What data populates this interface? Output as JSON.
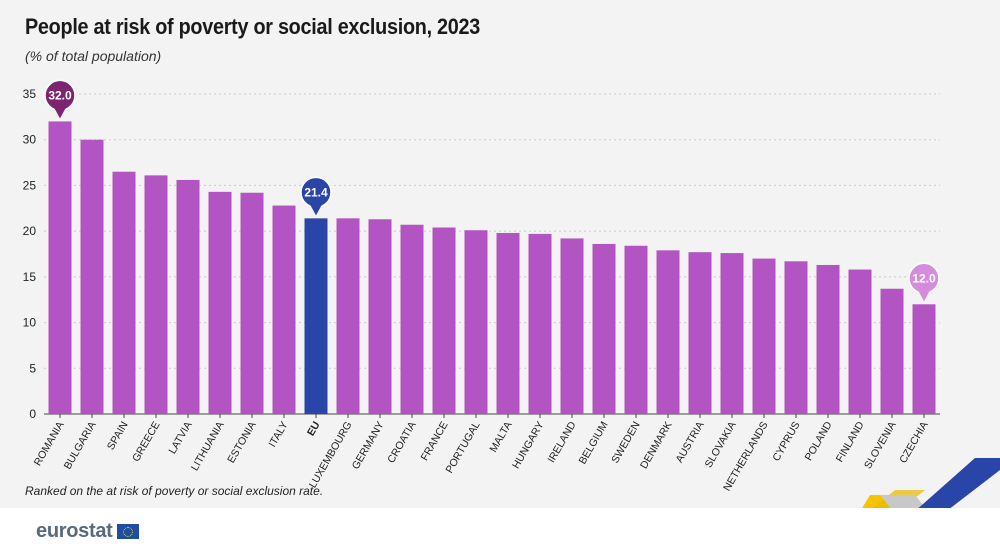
{
  "title": "People at risk of poverty or social exclusion, 2023",
  "subtitle": "(% of total population)",
  "footnote": "Ranked on the at risk of poverty or social exclusion rate.",
  "logo": {
    "text": "eurostat"
  },
  "colors": {
    "bar": "#b255c2",
    "eu": "#2a45a8",
    "max_bubble": "#7b2472",
    "min_bubble": "#d48ddd",
    "gridline": "#cccccc",
    "background": "#f3f3f3"
  },
  "chart_data": {
    "type": "bar",
    "title": "People at risk of poverty or social exclusion, 2023",
    "ylabel": "(% of total population)",
    "ylim": [
      0,
      35
    ],
    "yticks": [
      0,
      5,
      10,
      15,
      20,
      25,
      30,
      35
    ],
    "grid": true,
    "categories": [
      "ROMANIA",
      "BULGARIA",
      "SPAIN",
      "GREECE",
      "LATVIA",
      "LITHUANIA",
      "ESTONIA",
      "ITALY",
      "EU",
      "LUXEMBOURG",
      "GERMANY",
      "CROATIA",
      "FRANCE",
      "PORTUGAL",
      "MALTA",
      "HUNGARY",
      "IRELAND",
      "BELGIUM",
      "SWEDEN",
      "DENMARK",
      "AUSTRIA",
      "SLOVAKIA",
      "NETHERLANDS",
      "CYPRUS",
      "POLAND",
      "FINLAND",
      "SLOVENIA",
      "CZECHIA"
    ],
    "values": [
      32.0,
      30.0,
      26.5,
      26.1,
      25.6,
      24.3,
      24.2,
      22.8,
      21.4,
      21.4,
      21.3,
      20.7,
      20.4,
      20.1,
      19.8,
      19.7,
      19.2,
      18.6,
      18.4,
      17.9,
      17.7,
      17.6,
      17.0,
      16.7,
      16.3,
      15.8,
      13.7,
      12.0
    ],
    "annotations": [
      {
        "category": "ROMANIA",
        "label": "32.0",
        "style": "max"
      },
      {
        "category": "EU",
        "label": "21.4",
        "style": "eu"
      },
      {
        "category": "CZECHIA",
        "label": "12.0",
        "style": "min"
      }
    ]
  }
}
